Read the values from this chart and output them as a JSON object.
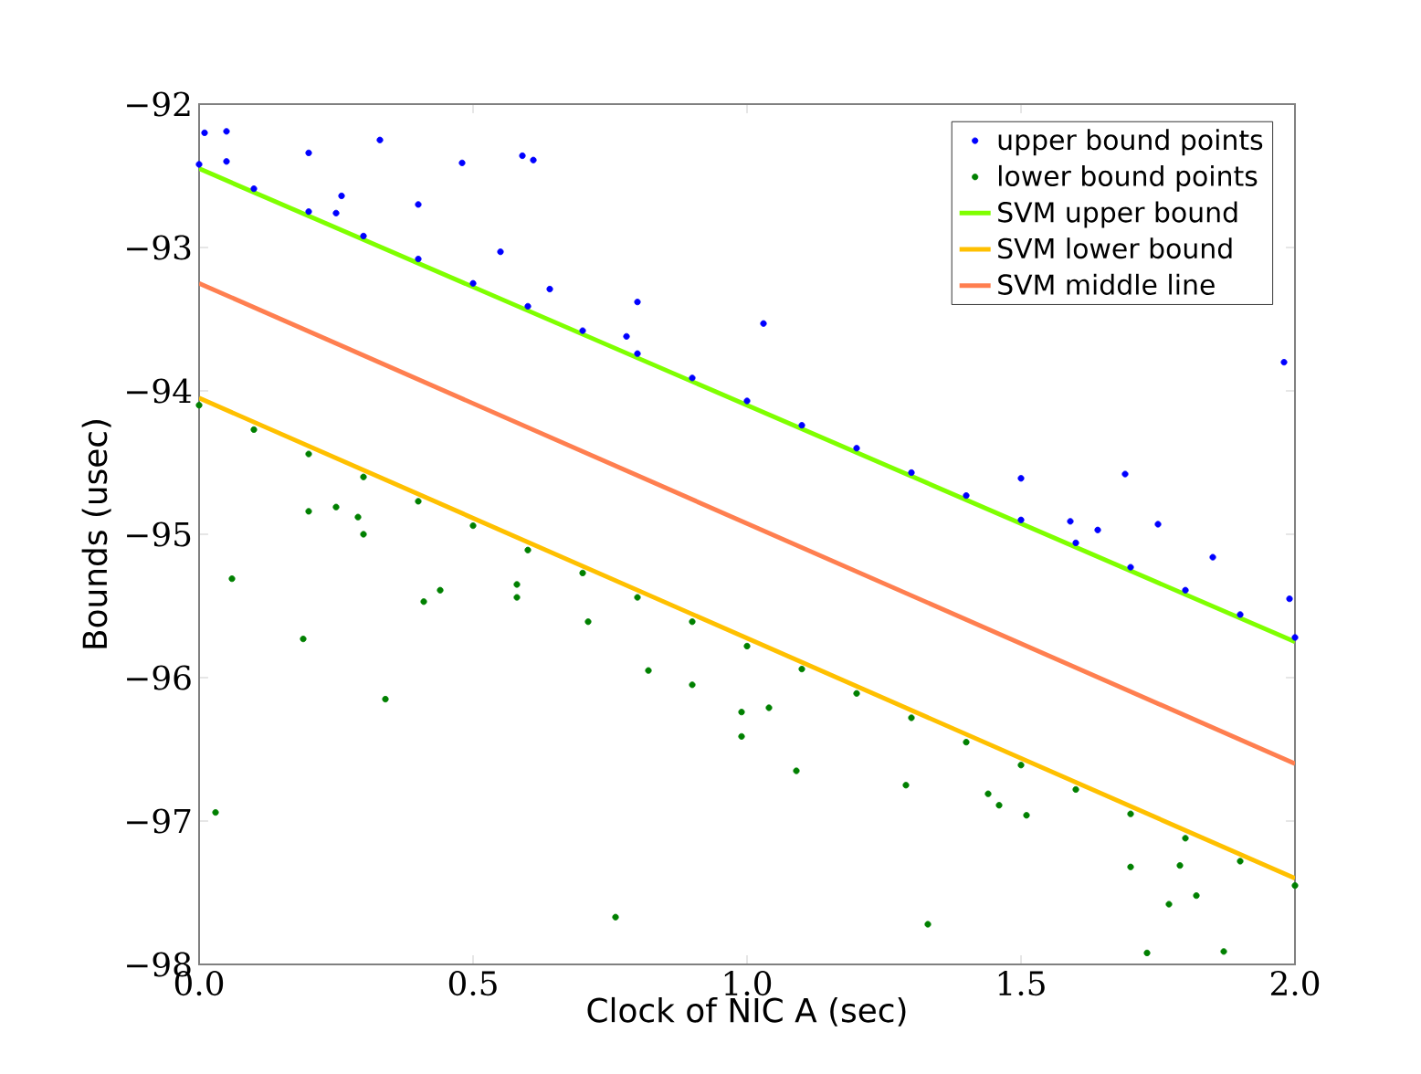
{
  "chart_data": {
    "type": "scatter",
    "xlabel": "Clock of NIC A (sec)",
    "ylabel": "Bounds (usec)",
    "xlim": [
      0,
      2
    ],
    "ylim": [
      -98,
      -92
    ],
    "xticks": [
      {
        "value": 0,
        "label": "0.0"
      },
      {
        "value": 0.5,
        "label": "0.5"
      },
      {
        "value": 1,
        "label": "1.0"
      },
      {
        "value": 1.5,
        "label": "1.5"
      },
      {
        "value": 2,
        "label": "2.0"
      }
    ],
    "yticks": [
      -98,
      -97,
      -96,
      -95,
      -94,
      -93,
      -92
    ],
    "grid": false,
    "legend": "top right",
    "series": [
      {
        "name": "upper bound points",
        "marker": "circle",
        "color": "#0000ff",
        "x": [
          0,
          0.1,
          0.2,
          0.3,
          0.4,
          0.5,
          0.6,
          0.7,
          0.8,
          0.9,
          1.0,
          1.1,
          1.2,
          1.3,
          1.4,
          1.5,
          1.6,
          1.7,
          1.8,
          1.9,
          2.0,
          0.01,
          0.05,
          0.05,
          0.2,
          0.33,
          0.26,
          0.25,
          0.4,
          0.48,
          0.59,
          0.61,
          0.55,
          0.64,
          0.8,
          0.78,
          1.03,
          1.5,
          1.69,
          1.59,
          1.64,
          1.75,
          1.98,
          1.85,
          1.99
        ],
        "values": [
          -92.42,
          -92.59,
          -92.75,
          -92.92,
          -93.08,
          -93.25,
          -93.41,
          -93.58,
          -93.74,
          -93.91,
          -94.07,
          -94.24,
          -94.4,
          -94.57,
          -94.73,
          -94.9,
          -95.06,
          -95.23,
          -95.39,
          -95.56,
          -95.72,
          -92.2,
          -92.19,
          -92.4,
          -92.34,
          -92.25,
          -92.64,
          -92.76,
          -92.7,
          -92.41,
          -92.36,
          -92.39,
          -93.03,
          -93.29,
          -93.38,
          -93.62,
          -93.53,
          -94.61,
          -94.58,
          -94.91,
          -94.97,
          -94.93,
          -93.8,
          -95.16,
          -95.45
        ]
      },
      {
        "name": "lower bound points",
        "marker": "circle",
        "color": "#008000",
        "x": [
          0,
          0.1,
          0.2,
          0.3,
          0.4,
          0.5,
          0.6,
          0.7,
          0.8,
          0.9,
          1.0,
          1.1,
          1.2,
          1.3,
          1.4,
          1.5,
          1.6,
          1.7,
          1.8,
          1.9,
          2.0,
          0.2,
          0.25,
          0.29,
          0.3,
          0.06,
          0.19,
          0.34,
          0.41,
          0.44,
          0.58,
          0.58,
          0.71,
          0.82,
          0.9,
          0.99,
          0.99,
          0.03,
          0.76,
          1.04,
          1.09,
          1.29,
          1.44,
          1.46,
          1.51,
          1.7,
          1.79,
          1.77,
          1.82,
          1.33,
          1.73,
          1.87
        ],
        "values": [
          -94.1,
          -94.27,
          -94.44,
          -94.6,
          -94.77,
          -94.94,
          -95.11,
          -95.27,
          -95.44,
          -95.61,
          -95.78,
          -95.94,
          -96.11,
          -96.28,
          -96.45,
          -96.61,
          -96.78,
          -96.95,
          -97.12,
          -97.28,
          -97.45,
          -94.84,
          -94.81,
          -94.88,
          -95.0,
          -95.31,
          -95.73,
          -96.15,
          -95.47,
          -95.39,
          -95.35,
          -95.44,
          -95.61,
          -95.95,
          -96.05,
          -96.24,
          -96.41,
          -96.94,
          -97.67,
          -96.21,
          -96.65,
          -96.75,
          -96.81,
          -96.89,
          -96.96,
          -97.32,
          -97.31,
          -97.58,
          -97.52,
          -97.72,
          -97.92,
          -97.91
        ]
      },
      {
        "name": "SVM upper bound",
        "type": "line",
        "marker": "none",
        "color": "#7fff00",
        "x": [
          0,
          2
        ],
        "values": [
          -92.45,
          -95.75
        ]
      },
      {
        "name": "SVM lower bound",
        "type": "line",
        "marker": "none",
        "color": "#ffc000",
        "x": [
          0,
          2
        ],
        "values": [
          -94.05,
          -97.4
        ]
      },
      {
        "name": "SVM middle line",
        "type": "line",
        "marker": "none",
        "color": "#ff7f50",
        "x": [
          0,
          2
        ],
        "values": [
          -93.25,
          -96.6
        ]
      }
    ]
  }
}
